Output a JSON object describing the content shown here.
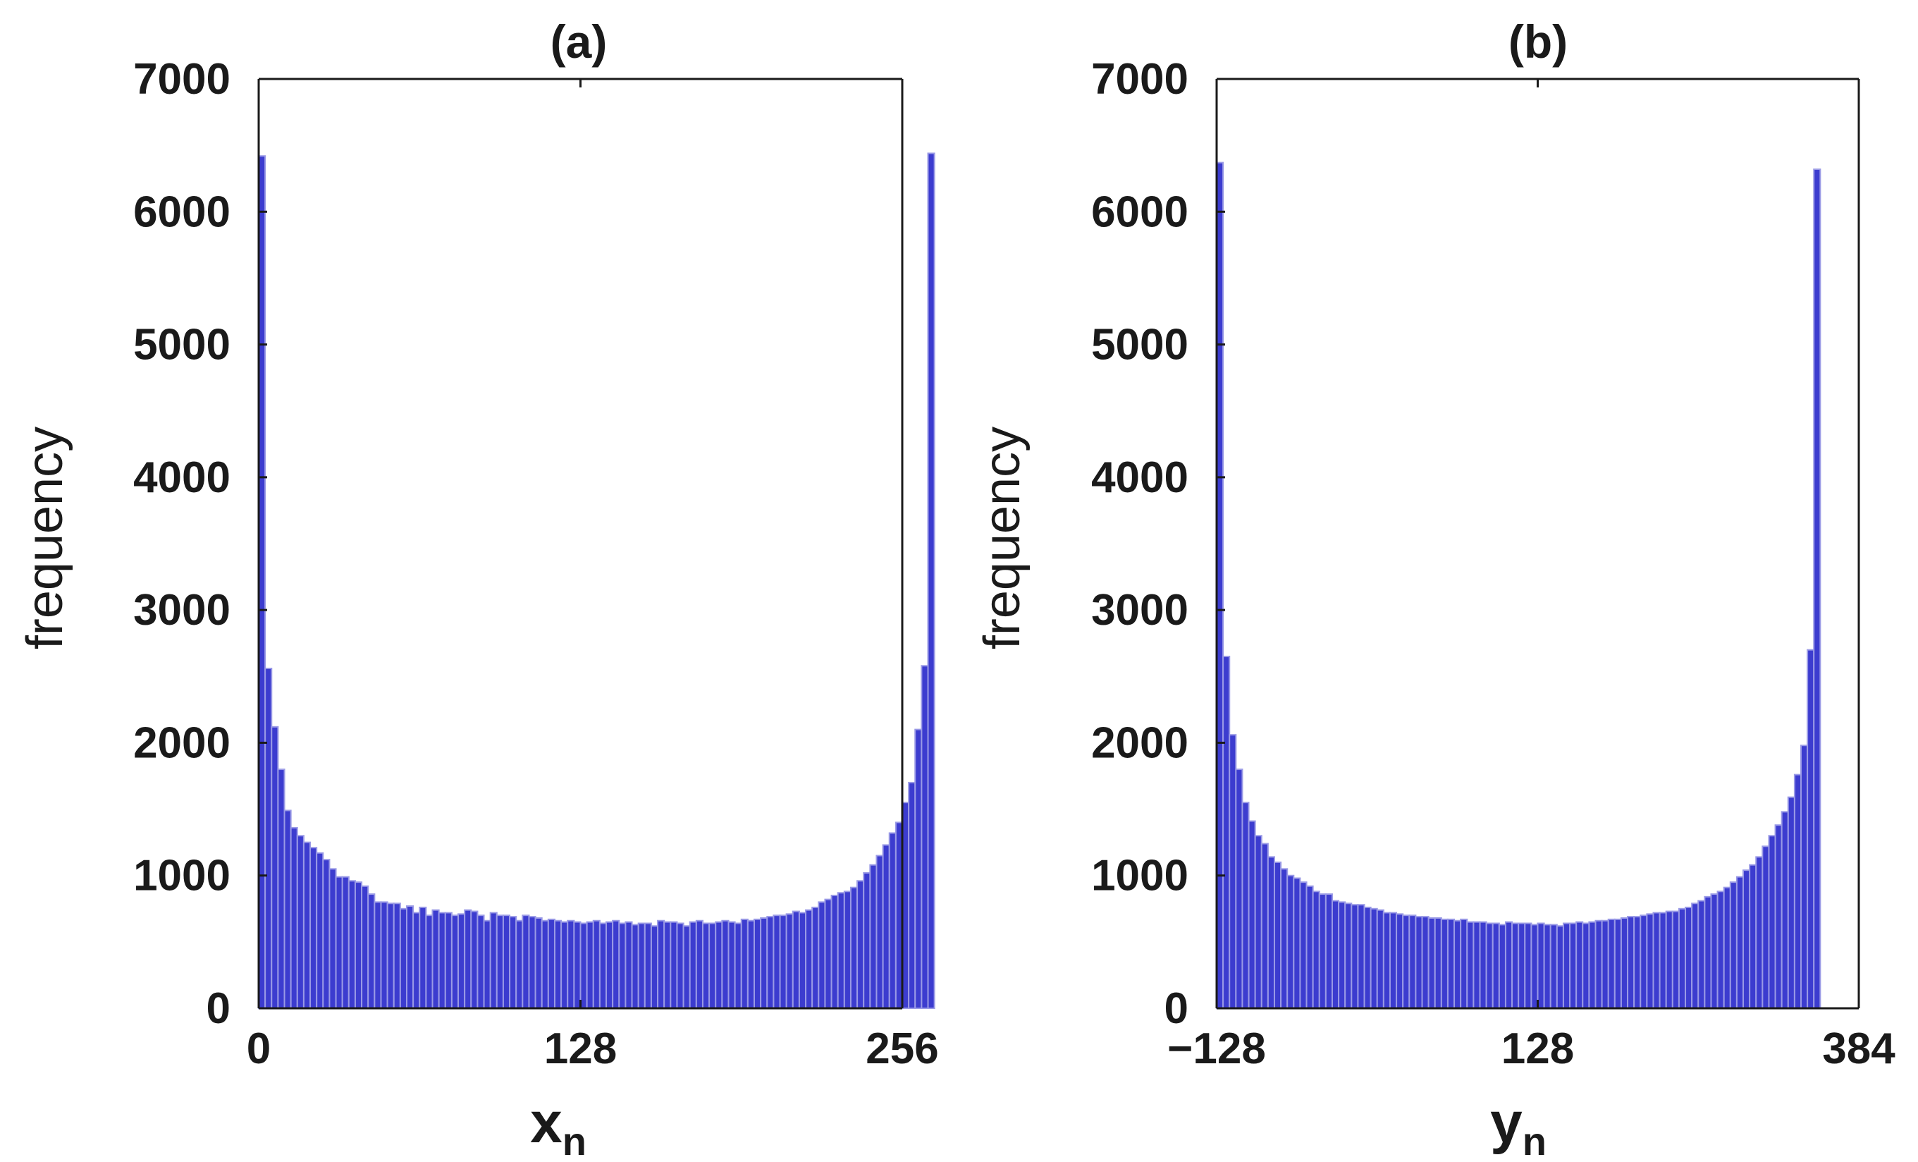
{
  "colors": {
    "bar_fill": "#3c3ccf",
    "bar_edge": "#9a9ae6",
    "axis": "#1a1a1a"
  },
  "chart_data": [
    {
      "type": "bar",
      "panel": "a",
      "title": "(a)",
      "ylabel": "frequency",
      "xlabel_main": "x",
      "xlabel_sub": "n",
      "xlim": [
        0,
        256
      ],
      "ylim": [
        0,
        7000
      ],
      "xticks": [
        0,
        128,
        256
      ],
      "xtick_labels": [
        "0",
        "128",
        "256"
      ],
      "yticks": [
        0,
        1000,
        2000,
        3000,
        4000,
        5000,
        6000,
        7000
      ],
      "ytick_labels": [
        "0",
        "1000",
        "2000",
        "3000",
        "4000",
        "5000",
        "6000",
        "7000"
      ],
      "bin_width": 2.56,
      "values": [
        6420,
        2560,
        2120,
        1800,
        1490,
        1360,
        1300,
        1250,
        1210,
        1170,
        1120,
        1050,
        990,
        990,
        960,
        950,
        920,
        860,
        800,
        800,
        790,
        790,
        750,
        770,
        720,
        760,
        700,
        740,
        720,
        720,
        700,
        710,
        740,
        730,
        700,
        660,
        720,
        700,
        700,
        690,
        660,
        700,
        690,
        680,
        660,
        670,
        660,
        650,
        660,
        650,
        640,
        650,
        660,
        640,
        650,
        660,
        640,
        650,
        630,
        640,
        640,
        620,
        660,
        650,
        650,
        640,
        620,
        650,
        660,
        640,
        640,
        650,
        660,
        650,
        640,
        670,
        660,
        670,
        680,
        690,
        700,
        700,
        710,
        730,
        720,
        740,
        760,
        800,
        820,
        850,
        870,
        880,
        910,
        960,
        1020,
        1080,
        1150,
        1230,
        1320,
        1400,
        1550,
        1700,
        2100,
        2580,
        6440
      ]
    },
    {
      "type": "bar",
      "panel": "b",
      "title": "(b)",
      "ylabel": "frequency",
      "xlabel_main": "y",
      "xlabel_sub": "n",
      "xlim": [
        -128,
        384
      ],
      "ylim": [
        0,
        7000
      ],
      "xticks": [
        -128,
        128,
        384
      ],
      "xtick_labels": [
        "−128",
        "128",
        "384"
      ],
      "yticks": [
        0,
        1000,
        2000,
        3000,
        4000,
        5000,
        6000,
        7000
      ],
      "ytick_labels": [
        "0",
        "1000",
        "2000",
        "3000",
        "4000",
        "5000",
        "6000",
        "7000"
      ],
      "bin_width": 5.12,
      "values": [
        6370,
        2650,
        2060,
        1800,
        1550,
        1410,
        1300,
        1240,
        1140,
        1100,
        1050,
        1000,
        980,
        950,
        920,
        880,
        860,
        860,
        810,
        800,
        790,
        780,
        780,
        760,
        750,
        740,
        720,
        720,
        710,
        700,
        700,
        690,
        690,
        680,
        680,
        670,
        670,
        660,
        670,
        650,
        650,
        650,
        640,
        640,
        630,
        650,
        640,
        640,
        640,
        630,
        640,
        630,
        630,
        620,
        640,
        640,
        650,
        640,
        650,
        660,
        660,
        670,
        670,
        680,
        690,
        690,
        700,
        710,
        720,
        720,
        730,
        730,
        750,
        760,
        790,
        810,
        840,
        860,
        880,
        910,
        950,
        990,
        1040,
        1080,
        1140,
        1220,
        1300,
        1380,
        1480,
        1590,
        1760,
        1980,
        2700,
        6320
      ]
    }
  ]
}
